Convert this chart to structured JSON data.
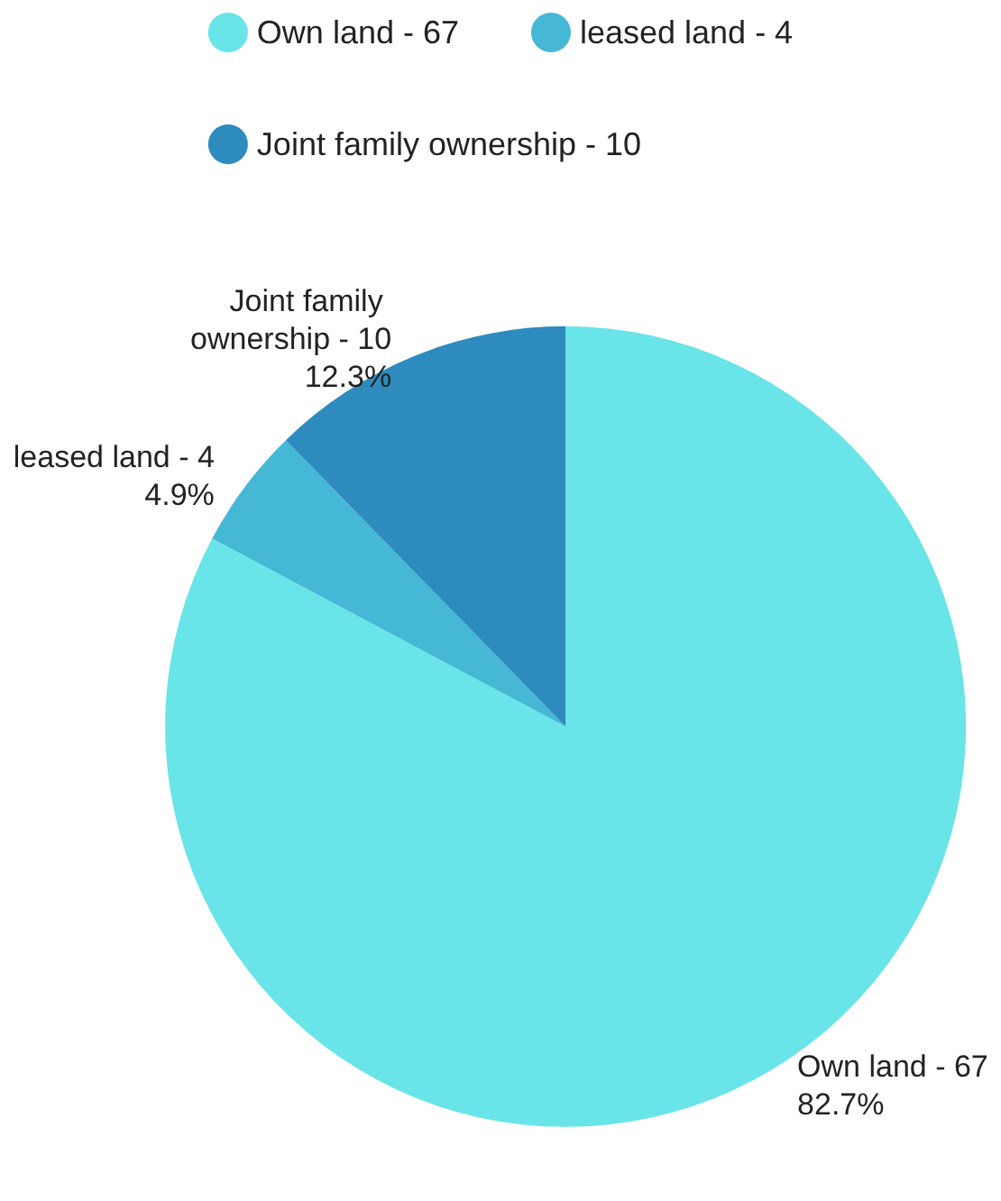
{
  "chart_data": {
    "type": "pie",
    "categories": [
      "Own land - 67",
      "leased land - 4",
      "Joint family ownership - 10"
    ],
    "values": [
      82.7,
      4.9,
      12.3
    ],
    "value_labels": [
      "82.7%",
      "4.9%",
      "12.3%"
    ],
    "colors": [
      "#69e4e8",
      "#45b8d6",
      "#2e8bbd"
    ],
    "legend": "top"
  }
}
